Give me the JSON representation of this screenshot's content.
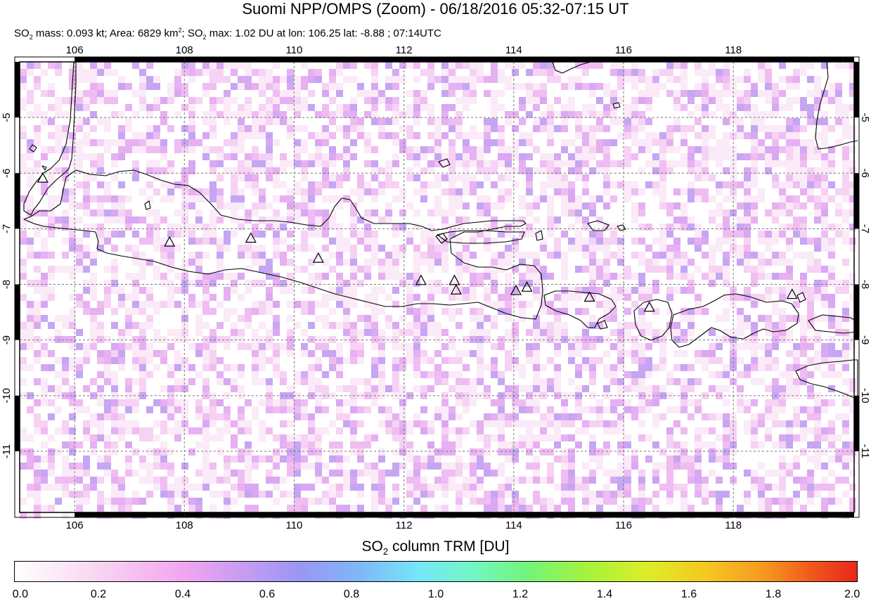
{
  "title": "Suomi NPP/OMPS (Zoom) - 06/18/2016 05:32-07:15 UT",
  "subtitle": {
    "mass_prefix": "SO",
    "mass_sub": "2",
    "mass_text": " mass: 0.093 kt; Area: 6829 km",
    "area_sup": "2",
    "max_sep": "; SO",
    "max_sub": "2",
    "max_text": " max: 1.02 DU at lon: 106.25 lat: -8.88 ; 07:14UTC"
  },
  "map": {
    "lon_range": [
      105,
      120.2
    ],
    "lat_range": [
      -12.1,
      -4
    ],
    "lon_ticks": [
      "106",
      "108",
      "110",
      "112",
      "114",
      "116",
      "118"
    ],
    "lat_ticks": [
      "-5",
      "-6",
      "-7",
      "-8",
      "-9",
      "-10",
      "-11"
    ],
    "grid": true,
    "coastline_color": "#000000",
    "volcano_marker": "triangle-icon",
    "volcanoes": [
      {
        "lon": 105.42,
        "lat": -6.1
      },
      {
        "lon": 107.73,
        "lat": -7.25
      },
      {
        "lon": 109.21,
        "lat": -7.18
      },
      {
        "lon": 110.44,
        "lat": -7.54
      },
      {
        "lon": 112.31,
        "lat": -7.94
      },
      {
        "lon": 112.92,
        "lat": -7.94
      },
      {
        "lon": 112.95,
        "lat": -8.11
      },
      {
        "lon": 114.04,
        "lat": -8.12
      },
      {
        "lon": 114.24,
        "lat": -8.06
      },
      {
        "lon": 115.38,
        "lat": -8.24
      },
      {
        "lon": 116.47,
        "lat": -8.42
      },
      {
        "lon": 119.07,
        "lat": -8.19
      }
    ]
  },
  "colorbar": {
    "title_prefix": "SO",
    "title_sub": "2",
    "title_text": " column TRM [DU]",
    "range": [
      0.0,
      2.0
    ],
    "ticks": [
      "0.0",
      "0.2",
      "0.4",
      "0.6",
      "0.8",
      "1.0",
      "1.2",
      "1.4",
      "1.6",
      "1.8",
      "2.0"
    ]
  }
}
